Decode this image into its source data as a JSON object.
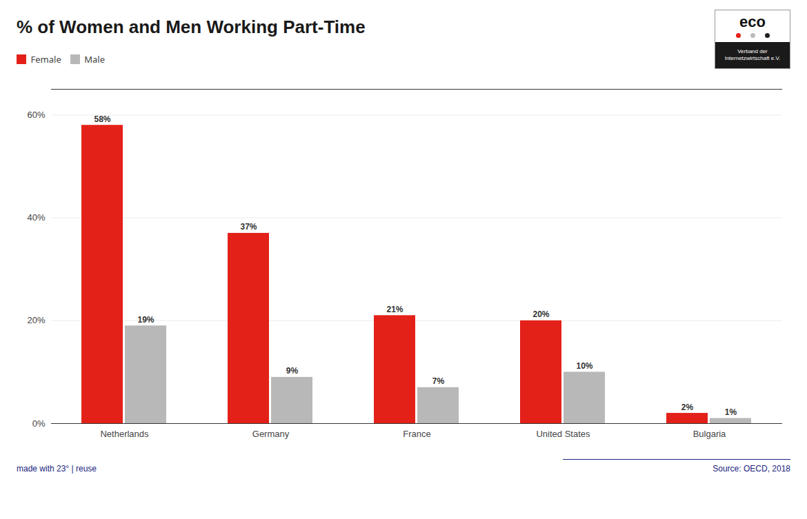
{
  "chart_data": {
    "type": "bar",
    "title": "% of Women and Men Working Part-Time",
    "categories": [
      "Netherlands",
      "Germany",
      "France",
      "United States",
      "Bulgaria"
    ],
    "series": [
      {
        "name": "Female",
        "color": "#e32119",
        "values": [
          58,
          37,
          21,
          20,
          2
        ],
        "value_labels": [
          "58%",
          "37%",
          "21%",
          "20%",
          "2%"
        ]
      },
      {
        "name": "Male",
        "color": "#b8b8b8",
        "values": [
          19,
          9,
          7,
          10,
          1
        ],
        "value_labels": [
          "19%",
          "9%",
          "7%",
          "10%",
          "1%"
        ]
      }
    ],
    "ylim": [
      0,
      65
    ],
    "yticks": [
      {
        "value": 0,
        "label": "0%"
      },
      {
        "value": 20,
        "label": "20%"
      },
      {
        "value": 40,
        "label": "40%"
      },
      {
        "value": 60,
        "label": "60%"
      }
    ],
    "grid": true,
    "legend": "upper left",
    "data_labels": true,
    "annotations": [
      "made with 23° | reuse",
      "Source: OECD, 2018",
      "eco",
      "Verband der\nInternetzwirtschaft e.V."
    ]
  }
}
